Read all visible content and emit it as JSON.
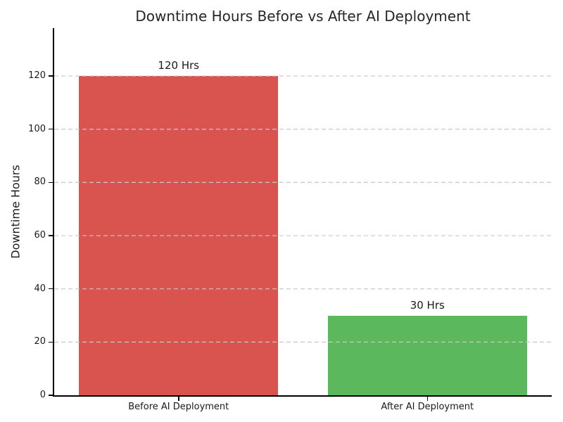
{
  "chart_data": {
    "type": "bar",
    "title": "Downtime Hours Before vs After AI Deployment",
    "xlabel": "",
    "ylabel": "Downtime Hours",
    "categories": [
      "Before AI Deployment",
      "After AI Deployment"
    ],
    "values": [
      120,
      30
    ],
    "bar_labels": [
      "120 Hrs",
      "30 Hrs"
    ],
    "bar_colors": [
      "#d9534f",
      "#5cb85c"
    ],
    "yticks": [
      0,
      20,
      40,
      60,
      80,
      100,
      120
    ],
    "ylim": [
      0,
      138
    ],
    "grid": "horizontal-dashed-over-bars",
    "gridline_color": "#c8c8c8",
    "spine_color": "#000000",
    "text_color": "#1a1a1a",
    "legend": "none",
    "background_color": "#ffffff"
  }
}
